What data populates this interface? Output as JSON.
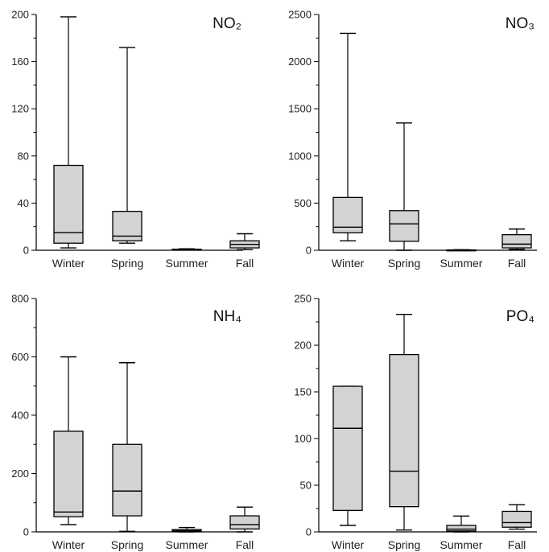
{
  "chart_data": [
    {
      "type": "box",
      "title": "NO₂",
      "categories": [
        "Winter",
        "Spring",
        "Summer",
        "Fall"
      ],
      "ylim": [
        0,
        200
      ],
      "yticks": [
        0,
        40,
        80,
        120,
        160,
        200
      ],
      "box_color": "#d3d3d3",
      "boxes": [
        {
          "min": 2,
          "q1": 6,
          "median": 15,
          "q3": 72,
          "max": 198
        },
        {
          "min": 6,
          "q1": 8,
          "median": 12,
          "q3": 33,
          "max": 172
        },
        {
          "min": 0.3,
          "q1": 0.5,
          "median": 0.7,
          "q3": 0.9,
          "max": 1.2
        },
        {
          "min": 0.5,
          "q1": 2,
          "median": 5,
          "q3": 8,
          "max": 14
        }
      ]
    },
    {
      "type": "box",
      "title": "NO₃",
      "categories": [
        "Winter",
        "Spring",
        "Summer",
        "Fall"
      ],
      "ylim": [
        0,
        2500
      ],
      "yticks": [
        0,
        500,
        1000,
        1500,
        2000,
        2500
      ],
      "box_color": "#d3d3d3",
      "boxes": [
        {
          "min": 100,
          "q1": 185,
          "median": 245,
          "q3": 560,
          "max": 2300
        },
        {
          "min": 0,
          "q1": 95,
          "median": 280,
          "q3": 420,
          "max": 1350
        },
        {
          "min": 1,
          "q1": 2,
          "median": 3,
          "q3": 4,
          "max": 6
        },
        {
          "min": 10,
          "q1": 25,
          "median": 65,
          "q3": 165,
          "max": 225
        }
      ]
    },
    {
      "type": "box",
      "title": "NH₄",
      "categories": [
        "Winter",
        "Spring",
        "Summer",
        "Fall"
      ],
      "ylim": [
        0,
        800
      ],
      "yticks": [
        0,
        200,
        400,
        600,
        800
      ],
      "box_color": "#d3d3d3",
      "boxes": [
        {
          "min": 25,
          "q1": 52,
          "median": 68,
          "q3": 345,
          "max": 600
        },
        {
          "min": 2,
          "q1": 55,
          "median": 140,
          "q3": 300,
          "max": 580
        },
        {
          "min": 0,
          "q1": 2,
          "median": 4,
          "q3": 8,
          "max": 15
        },
        {
          "min": 0,
          "q1": 10,
          "median": 25,
          "q3": 55,
          "max": 85
        }
      ]
    },
    {
      "type": "box",
      "title": "PO₄",
      "categories": [
        "Winter",
        "Spring",
        "Summer",
        "Fall"
      ],
      "ylim": [
        0,
        250
      ],
      "yticks": [
        0,
        50,
        100,
        150,
        200,
        250
      ],
      "box_color": "#d3d3d3",
      "boxes": [
        {
          "min": 7,
          "q1": 23,
          "median": 111,
          "q3": 156,
          "max": 156
        },
        {
          "min": 2,
          "q1": 27,
          "median": 65,
          "q3": 190,
          "max": 233
        },
        {
          "min": 0,
          "q1": 1,
          "median": 3,
          "q3": 7,
          "max": 17
        },
        {
          "min": 3,
          "q1": 5,
          "median": 10,
          "q3": 22,
          "max": 29
        }
      ]
    }
  ]
}
